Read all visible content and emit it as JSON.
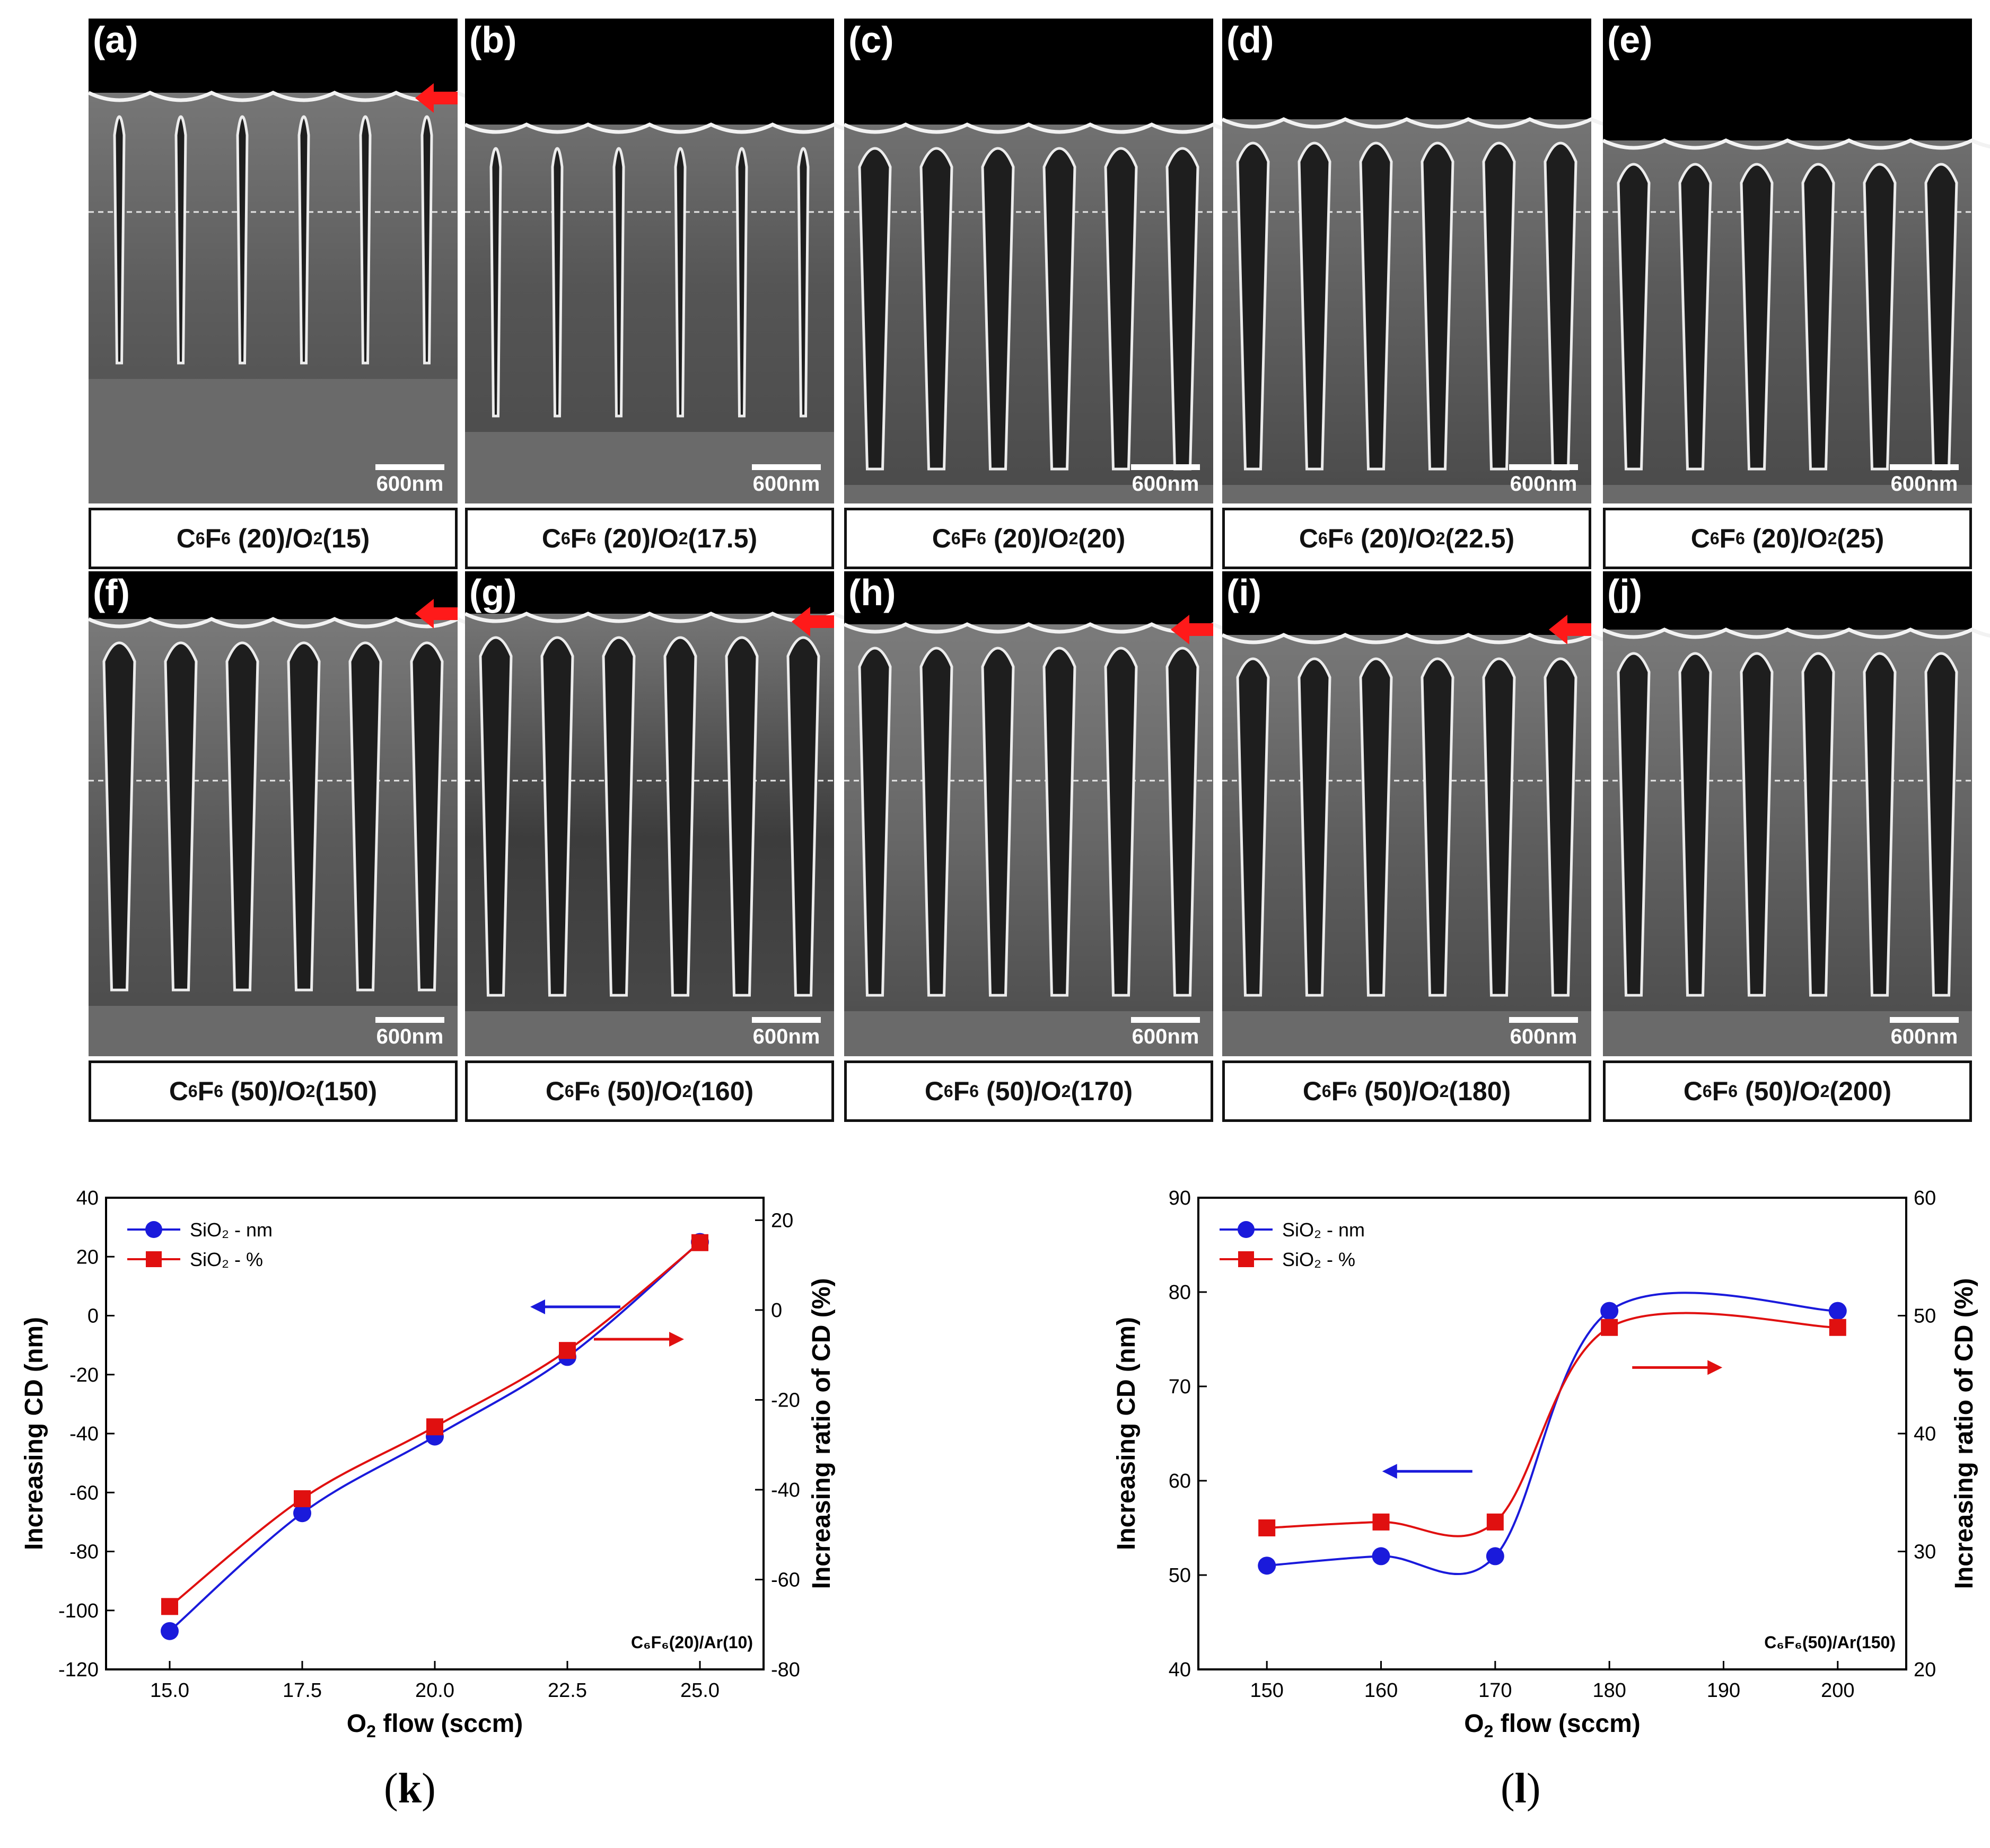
{
  "sem_panels": [
    {
      "label": "(a)",
      "scale": "600nm",
      "caption": {
        "pre": "C",
        "s1": "6",
        "mid": "F",
        "s2": "6",
        "rest1": " (20)/O",
        "s3": "2",
        "rest2": "(15)"
      },
      "style": {
        "top_y": 140,
        "tint": "#5e5e5e",
        "arrow": true,
        "arrow_y": 150,
        "slim": true,
        "depth": 650
      }
    },
    {
      "label": "(b)",
      "scale": "600nm",
      "caption": {
        "pre": "C",
        "s1": "6",
        "mid": "F",
        "s2": "6",
        "rest1": " (20)/O",
        "s3": "2",
        "rest2": "(17.5)"
      },
      "style": {
        "top_y": 200,
        "tint": "#555555",
        "arrow": false,
        "slim": true,
        "depth": 750
      }
    },
    {
      "label": "(c)",
      "scale": "600nm",
      "caption": {
        "pre": "C",
        "s1": "6",
        "mid": "F",
        "s2": "6",
        "rest1": " (20)/O",
        "s3": "2",
        "rest2": "(20)"
      },
      "style": {
        "top_y": 200,
        "tint": "#5a5a5a",
        "arrow": false,
        "slim": false,
        "depth": 850
      }
    },
    {
      "label": "(d)",
      "scale": "600nm",
      "caption": {
        "pre": "C",
        "s1": "6",
        "mid": "F",
        "s2": "6",
        "rest1": " (20)/O",
        "s3": "2",
        "rest2": "(22.5)"
      },
      "style": {
        "top_y": 190,
        "tint": "#616161",
        "arrow": false,
        "slim": false,
        "depth": 850
      }
    },
    {
      "label": "(e)",
      "scale": "600nm",
      "caption": {
        "pre": "C",
        "s1": "6",
        "mid": "F",
        "s2": "6",
        "rest1": " (20)/O",
        "s3": "2",
        "rest2": "(25)"
      },
      "style": {
        "top_y": 230,
        "tint": "#5a5a5a",
        "arrow": false,
        "slim": false,
        "depth": 850
      }
    },
    {
      "label": "(f)",
      "scale": "600nm",
      "caption": {
        "pre": "C",
        "s1": "6",
        "mid": "F",
        "s2": "6",
        "rest1": " (50)/O",
        "s3": "2",
        "rest2": "(150)"
      },
      "style": {
        "top_y": 90,
        "tint": "#5a5a5a",
        "arrow": true,
        "arrow_y": 80,
        "slim": false,
        "depth": 790
      }
    },
    {
      "label": "(g)",
      "scale": "600nm",
      "caption": {
        "pre": "C",
        "s1": "6",
        "mid": "F",
        "s2": "6",
        "rest1": " (50)/O",
        "s3": "2",
        "rest2": "(160)"
      },
      "style": {
        "top_y": 80,
        "tint": "#3c3c3c",
        "arrow": true,
        "arrow_y": 95,
        "slim": false,
        "depth": 800
      }
    },
    {
      "label": "(h)",
      "scale": "600nm",
      "caption": {
        "pre": "C",
        "s1": "6",
        "mid": "F",
        "s2": "6",
        "rest1": " (50)/O",
        "s3": "2",
        "rest2": "(170)"
      },
      "style": {
        "top_y": 100,
        "tint": "#676767",
        "arrow": true,
        "arrow_y": 110,
        "slim": false,
        "depth": 800
      }
    },
    {
      "label": "(i)",
      "scale": "600nm",
      "caption": {
        "pre": "C",
        "s1": "6",
        "mid": "F",
        "s2": "6",
        "rest1": " (50)/O",
        "s3": "2",
        "rest2": "(180)"
      },
      "style": {
        "top_y": 120,
        "tint": "#5e5e5e",
        "arrow": true,
        "arrow_y": 110,
        "slim": false,
        "depth": 800
      }
    },
    {
      "label": "(j)",
      "scale": "600nm",
      "caption": {
        "pre": "C",
        "s1": "6",
        "mid": "F",
        "s2": "6",
        "rest1": " (50)/O",
        "s3": "2",
        "rest2": "(200)"
      },
      "style": {
        "top_y": 110,
        "tint": "#616161",
        "arrow": false,
        "slim": false,
        "depth": 800
      }
    }
  ],
  "chart_data": [
    {
      "type": "line",
      "panel_label": "k",
      "x": [
        15.0,
        17.5,
        20.0,
        22.5,
        25.0
      ],
      "xticks": [
        "15.0",
        "17.5",
        "20.0",
        "22.5",
        "25.0"
      ],
      "xlim": [
        13.8,
        26.2
      ],
      "xlabel": {
        "pre": "O",
        "sub": "2",
        "post": " flow (sccm)"
      },
      "ylabel": "Increasing CD (nm)",
      "ylim": [
        -120,
        40
      ],
      "yticks": [
        -120,
        -100,
        -80,
        -60,
        -40,
        -20,
        0,
        20,
        40
      ],
      "y2label": "Increasing ratio of CD (%)",
      "y2lim": [
        -80,
        25
      ],
      "y2ticks": [
        -80,
        -60,
        -40,
        -20,
        0,
        20
      ],
      "series": [
        {
          "name": "SiO₂ - nm",
          "axis": "left",
          "color": "#1a1adb",
          "marker": "circle",
          "values": [
            -107,
            -67,
            -41,
            -14,
            25
          ]
        },
        {
          "name": "SiO₂ - %",
          "axis": "right",
          "color": "#e01010",
          "marker": "square",
          "values": [
            -66,
            -42,
            -26,
            -9,
            15
          ]
        }
      ],
      "annotation": "C₆F₆(20)/Ar(10)",
      "arrows": [
        {
          "color": "#1a1adb",
          "direction": "left",
          "x": 23.5,
          "y_left": 3
        },
        {
          "color": "#e01010",
          "direction": "right",
          "x": 23.0,
          "y_left": -8
        }
      ],
      "legend": "top-left",
      "grid": false
    },
    {
      "type": "line",
      "panel_label": "l",
      "x": [
        150,
        160,
        170,
        180,
        200
      ],
      "xticks": [
        "150",
        "160",
        "170",
        "180",
        "190",
        "200"
      ],
      "xtick_vals": [
        150,
        160,
        170,
        180,
        190,
        200
      ],
      "xlim": [
        144,
        206
      ],
      "xlabel": {
        "pre": "O",
        "sub": "2",
        "post": " flow (sccm)"
      },
      "ylabel": "Increasing CD (nm)",
      "ylim": [
        40,
        90
      ],
      "yticks": [
        40,
        50,
        60,
        70,
        80,
        90
      ],
      "y2label": "Increasing ratio of CD (%)",
      "y2lim": [
        20,
        60
      ],
      "y2ticks": [
        20,
        30,
        40,
        50,
        60
      ],
      "series": [
        {
          "name": "SiO₂ - nm",
          "axis": "left",
          "color": "#1a1adb",
          "marker": "circle",
          "values": [
            51,
            52,
            52,
            78,
            78
          ]
        },
        {
          "name": "SiO₂ - %",
          "axis": "right",
          "color": "#e01010",
          "marker": "square",
          "values": [
            32,
            32.5,
            32.5,
            49,
            49
          ]
        }
      ],
      "annotation": "C₆F₆(50)/Ar(150)",
      "arrows": [
        {
          "color": "#1a1adb",
          "direction": "left",
          "x": 168,
          "y_left": 61
        },
        {
          "color": "#e01010",
          "direction": "right",
          "x": 182,
          "y_left": 72
        }
      ],
      "legend": "top-left",
      "grid": false
    }
  ]
}
